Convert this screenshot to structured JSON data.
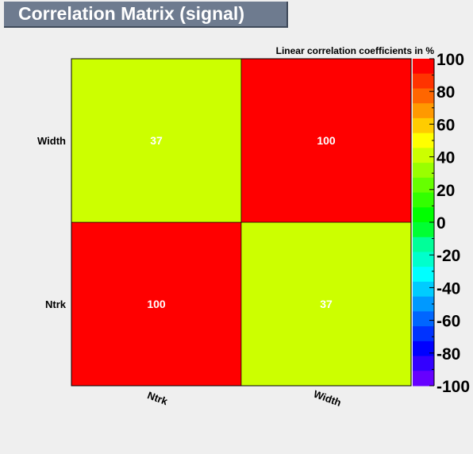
{
  "chart_data": {
    "type": "heatmap",
    "title": "Correlation Matrix (signal)",
    "subtitle": "Linear correlation coefficients in %",
    "x_categories": [
      "Ntrk",
      "Width"
    ],
    "y_categories": [
      "Ntrk",
      "Width"
    ],
    "values": [
      [
        100,
        37
      ],
      [
        37,
        100
      ]
    ],
    "color_scale": {
      "min": -100,
      "max": 100,
      "tick_labels": [
        "100",
        "80",
        "60",
        "40",
        "20",
        "0",
        "-20",
        "-40",
        "-60",
        "-80",
        "-100"
      ],
      "colors": [
        "#ff0000",
        "#ff3300",
        "#ff6600",
        "#ff9900",
        "#ffcc00",
        "#ffff00",
        "#ccff00",
        "#99ff00",
        "#66ff00",
        "#33ff00",
        "#00ff00",
        "#00ff33",
        "#00ff99",
        "#00ffcc",
        "#00ffff",
        "#00ccff",
        "#0099ff",
        "#0066ff",
        "#0033ff",
        "#0000ff",
        "#3300ff",
        "#6600ff"
      ]
    }
  }
}
